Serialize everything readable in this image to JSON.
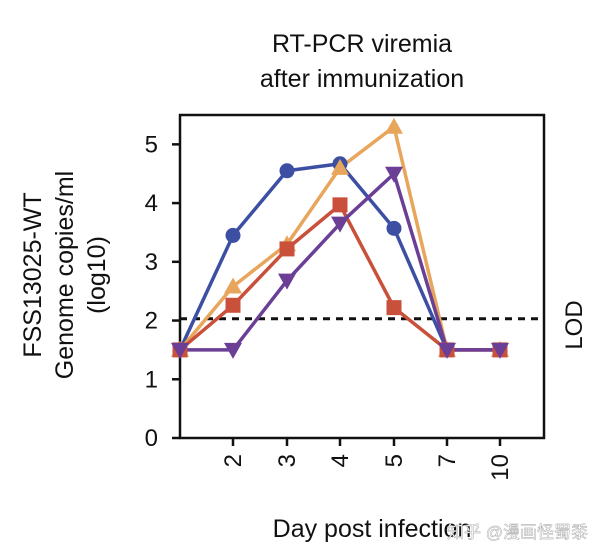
{
  "chart_data": {
    "type": "line",
    "title_lines": [
      "RT-PCR viremia",
      "after immunization"
    ],
    "xlabel": "Day post infection",
    "ylabel_lines": [
      "FSS13025-WT",
      "Genome copies/ml",
      "(log10)"
    ],
    "categories": [
      "",
      "2",
      "3",
      "4",
      "5",
      "7",
      "10"
    ],
    "x_tick_labels": [
      "2",
      "3",
      "4",
      "5",
      "7",
      "10"
    ],
    "ylim": [
      0,
      5.5
    ],
    "y_ticks": [
      0,
      1,
      2,
      3,
      4,
      5
    ],
    "lod": {
      "value": 2.03,
      "label": "LOD"
    },
    "series": [
      {
        "name": "blue",
        "color": "#3d4fa3",
        "marker": "circle",
        "values": [
          1.5,
          3.45,
          4.55,
          4.67,
          3.57,
          1.5,
          1.5
        ]
      },
      {
        "name": "orange",
        "color": "#e8a65c",
        "marker": "triangle-up",
        "values": [
          1.5,
          2.58,
          3.3,
          4.6,
          5.3,
          1.5,
          1.5
        ]
      },
      {
        "name": "red",
        "color": "#c9503a",
        "marker": "square",
        "values": [
          1.5,
          2.26,
          3.22,
          3.97,
          2.22,
          1.5,
          1.5
        ]
      },
      {
        "name": "purple",
        "color": "#6b3f96",
        "marker": "triangle-down",
        "values": [
          1.5,
          1.5,
          2.68,
          3.65,
          4.5,
          1.5,
          1.5
        ]
      }
    ]
  },
  "watermark": "知乎 @漫画怪蜀黍"
}
